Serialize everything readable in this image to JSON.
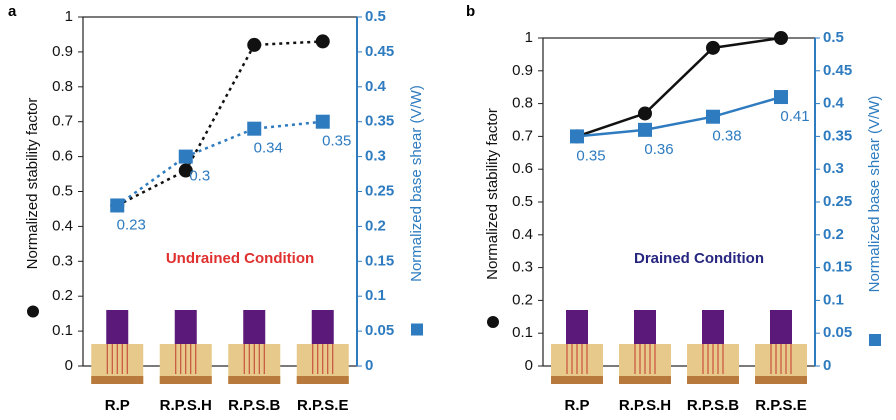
{
  "chart_data": [
    {
      "type": "line",
      "panel_label": "a",
      "annotation": "Undrained  Condition",
      "annotation_color": "#e0302f",
      "ylabel": "Normalized stability factor",
      "y2label": "Normalized base shear (V/W)",
      "categories": [
        "R.P",
        "R.P.S.H",
        "R.P.S.B",
        "R.P.S.E"
      ],
      "ylim": [
        0,
        1
      ],
      "yticks": [
        0,
        0.1,
        0.2,
        0.3,
        0.4,
        0.5,
        0.6,
        0.7,
        0.8,
        0.9,
        1
      ],
      "y2lim": [
        0,
        0.5
      ],
      "y2ticks": [
        0,
        0.05,
        0.1,
        0.15,
        0.2,
        0.25,
        0.3,
        0.35,
        0.4,
        0.45,
        0.5
      ],
      "series": [
        {
          "color": "#111111",
          "marker": "circle",
          "dashed": true,
          "values": [
            0.46,
            0.56,
            0.92,
            0.93
          ]
        },
        {
          "color": "#2e7bbf",
          "marker": "square",
          "dashed": true,
          "axis": "y2",
          "labels": true,
          "values": [
            0.23,
            0.3,
            0.34,
            0.35
          ]
        }
      ]
    },
    {
      "type": "line",
      "panel_label": "b",
      "annotation": "Drained  Condition",
      "annotation_color": "#262680",
      "ylabel": "Normalized stability factor",
      "y2label": "Normalized base shear (V/W)",
      "categories": [
        "R.P",
        "R.P.S.H",
        "R.P.S.B",
        "R.P.S.E"
      ],
      "ylim": [
        0,
        1
      ],
      "yticks": [
        0,
        0.1,
        0.2,
        0.3,
        0.4,
        0.5,
        0.6,
        0.7,
        0.8,
        0.9,
        1
      ],
      "y2lim": [
        0,
        0.5
      ],
      "y2ticks": [
        0,
        0.05,
        0.1,
        0.15,
        0.2,
        0.25,
        0.3,
        0.35,
        0.4,
        0.45,
        0.5
      ],
      "series": [
        {
          "color": "#111111",
          "marker": "circle",
          "dashed": false,
          "values": [
            0.7,
            0.77,
            0.97,
            1.0
          ]
        },
        {
          "color": "#2e7bbf",
          "marker": "square",
          "dashed": false,
          "axis": "y2",
          "labels": true,
          "values": [
            0.35,
            0.36,
            0.38,
            0.41
          ]
        }
      ]
    }
  ]
}
